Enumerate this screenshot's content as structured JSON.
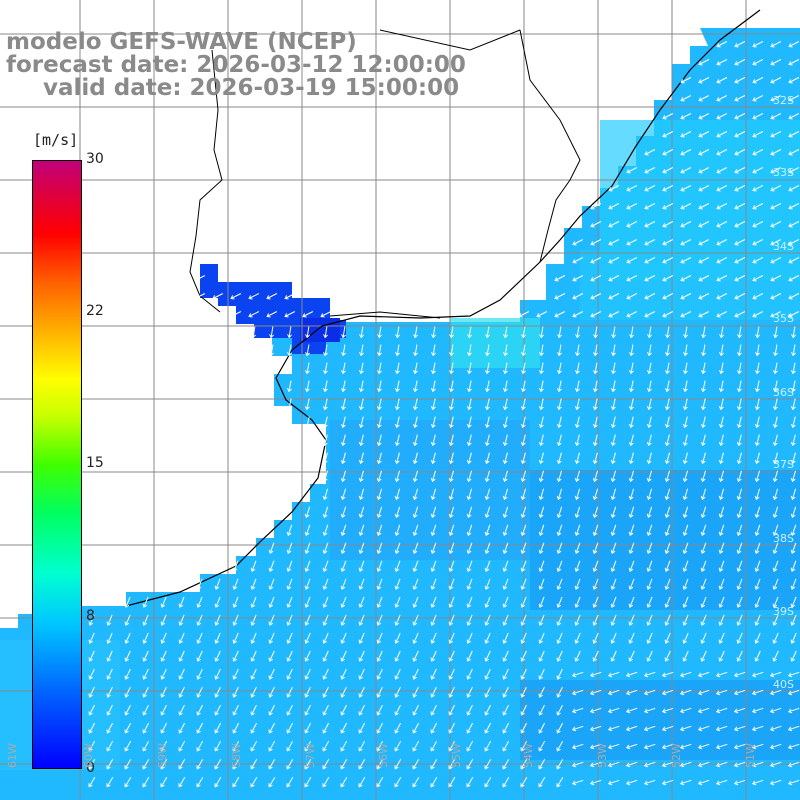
{
  "title": {
    "line1": "modelo GEFS-WAVE (NCEP)",
    "line2": "forecast date: 2026-03-12 12:00:00",
    "line3": "valid date: 2026-03-19 15:00:00"
  },
  "colorbar": {
    "unit": "[m/s]",
    "ticks": [
      "30",
      "22",
      "15",
      "8",
      "0"
    ],
    "colors": [
      "#0000ff",
      "#00c8ff",
      "#00ff60",
      "#ffff00",
      "#ff0000",
      "#c0007a"
    ]
  },
  "lon_labels": [
    "61W",
    "60W",
    "59W",
    "58W",
    "57W",
    "56W",
    "55W",
    "54W",
    "53W",
    "52W",
    "51W"
  ],
  "lat_labels": [
    "32S",
    "33S",
    "34S",
    "35S",
    "36S",
    "37S",
    "38S",
    "39S",
    "40S"
  ],
  "colors": {
    "land": "#ffffff",
    "ocean_base": "#20b8ff",
    "river_plate": "#0a44f0",
    "grid": "#888888",
    "coast": "#000000",
    "arrows": "#ffffff"
  }
}
